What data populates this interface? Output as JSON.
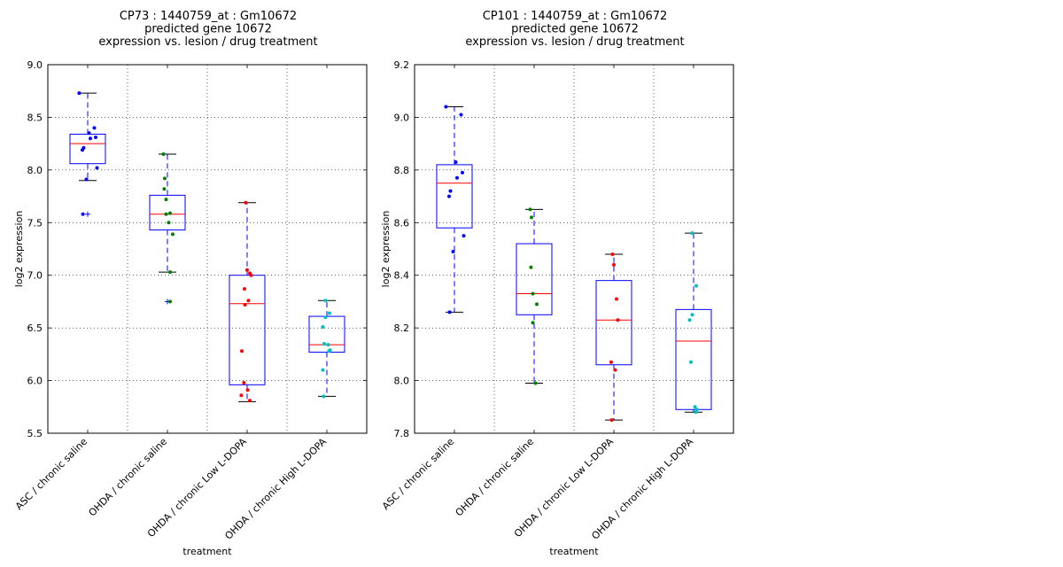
{
  "chart_data": [
    {
      "type": "box",
      "title_lines": [
        "CP73 : 1440759_at : Gm10672",
        "predicted gene 10672",
        "expression vs. lesion / drug treatment"
      ],
      "xlabel": "treatment",
      "ylabel": "log2 expression",
      "ylim": [
        5.5,
        9.0
      ],
      "yticks": [
        "5.5",
        "6.0",
        "6.5",
        "7.0",
        "7.5",
        "8.0",
        "8.5",
        "9.0"
      ],
      "grid": true,
      "categories": [
        "ASC / chronic saline",
        "OHDA / chronic saline",
        "OHDA / chronic Low L-DOPA",
        "OHDA / chronic High L-DOPA"
      ],
      "colors": [
        "#0000ff",
        "#008000",
        "#ff0000",
        "#00bfbf"
      ],
      "boxes": [
        {
          "whislo": 7.9,
          "q1": 8.06,
          "median": 8.25,
          "q3": 8.34,
          "whishi": 8.73,
          "fliers": [
            7.58
          ]
        },
        {
          "whislo": 7.03,
          "q1": 7.43,
          "median": 7.58,
          "q3": 7.76,
          "whishi": 8.15,
          "fliers": [
            6.75
          ]
        },
        {
          "whislo": 5.8,
          "q1": 5.96,
          "median": 6.73,
          "q3": 7.0,
          "whishi": 7.69,
          "fliers": []
        },
        {
          "whislo": 5.85,
          "q1": 6.27,
          "median": 6.34,
          "q3": 6.61,
          "whishi": 6.76,
          "fliers": []
        }
      ],
      "points": [
        [
          8.73,
          8.4,
          8.35,
          8.31,
          8.3,
          8.21,
          8.19,
          8.02,
          7.91,
          7.58
        ],
        [
          8.15,
          7.92,
          7.82,
          7.72,
          7.59,
          7.58,
          7.5,
          7.39,
          7.03,
          6.75
        ],
        [
          7.69,
          7.05,
          7.02,
          7.0,
          6.87,
          6.76,
          6.72,
          6.28,
          5.98,
          5.91,
          5.86,
          5.81
        ],
        [
          6.76,
          6.64,
          6.6,
          6.51,
          6.35,
          6.34,
          6.29,
          6.28,
          6.1,
          5.85
        ]
      ]
    },
    {
      "type": "box",
      "title_lines": [
        "CP101 : 1440759_at : Gm10672",
        "predicted gene 10672",
        "expression vs. lesion / drug treatment"
      ],
      "xlabel": "treatment",
      "ylabel": "log2 expression",
      "ylim": [
        7.8,
        9.2
      ],
      "yticks": [
        "7.8",
        "8.0",
        "8.2",
        "8.4",
        "8.6",
        "8.8",
        "9.0",
        "9.2"
      ],
      "grid": true,
      "categories": [
        "ASC / chronic saline",
        "OHDA / chronic saline",
        "OHDA / chronic Low L-DOPA",
        "OHDA / chronic High L-DOPA"
      ],
      "colors": [
        "#0000ff",
        "#008000",
        "#ff0000",
        "#00bfbf"
      ],
      "boxes": [
        {
          "whislo": 8.26,
          "q1": 8.58,
          "median": 8.75,
          "q3": 8.82,
          "whishi": 9.04,
          "fliers": []
        },
        {
          "whislo": 7.99,
          "q1": 8.25,
          "median": 8.33,
          "q3": 8.52,
          "whishi": 8.65,
          "fliers": []
        },
        {
          "whislo": 7.85,
          "q1": 8.06,
          "median": 8.23,
          "q3": 8.38,
          "whishi": 8.48,
          "fliers": []
        },
        {
          "whislo": 7.88,
          "q1": 7.89,
          "median": 8.15,
          "q3": 8.27,
          "whishi": 8.56,
          "fliers": []
        }
      ],
      "points": [
        [
          9.04,
          9.01,
          8.83,
          8.79,
          8.77,
          8.72,
          8.7,
          8.55,
          8.49,
          8.26
        ],
        [
          8.65,
          8.62,
          8.43,
          8.33,
          8.29,
          8.22,
          7.99
        ],
        [
          8.48,
          8.44,
          8.31,
          8.23,
          8.07,
          8.04,
          7.85
        ],
        [
          8.56,
          8.36,
          8.25,
          8.23,
          8.07,
          7.9,
          7.89,
          7.88
        ]
      ]
    }
  ]
}
